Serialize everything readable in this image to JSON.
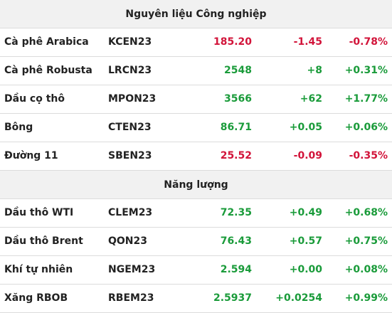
{
  "sections": [
    {
      "title": "Nguyên liệu Công nghiệp",
      "rows": [
        [
          "Cà phê Arabica",
          "KCEN23",
          "185.20",
          "-1.45",
          "-0.78%"
        ],
        [
          "Cà phê Robusta",
          "LRCN23",
          "2548",
          "+8",
          "+0.31%"
        ],
        [
          "Dầu cọ thô",
          "MPON23",
          "3566",
          "+62",
          "+1.77%"
        ],
        [
          "Bông",
          "CTEN23",
          "86.71",
          "+0.05",
          "+0.06%"
        ],
        [
          "Đường 11",
          "SBEN23",
          "25.52",
          "-0.09",
          "-0.35%"
        ]
      ]
    },
    {
      "title": "Năng lượng",
      "rows": [
        [
          "Dầu thô WTI",
          "CLEM23",
          "72.35",
          "+0.49",
          "+0.68%"
        ],
        [
          "Dầu thô Brent",
          "QON23",
          "76.43",
          "+0.57",
          "+0.75%"
        ],
        [
          "Khí tự nhiên",
          "NGEM23",
          "2.594",
          "+0.00",
          "+0.08%"
        ],
        [
          "Xăng RBOB",
          "RBEM23",
          "2.5937",
          "+0.0254",
          "+0.99%"
        ]
      ]
    }
  ]
}
